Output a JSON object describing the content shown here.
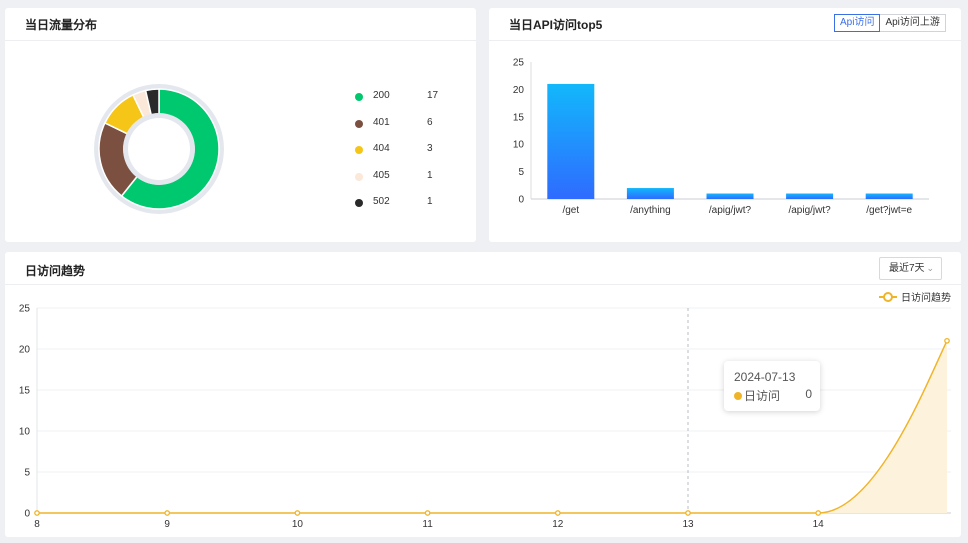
{
  "traffic_card": {
    "title": "当日流量分布",
    "legend": [
      {
        "code": "200",
        "count": 17,
        "color": "#00c86e"
      },
      {
        "code": "401",
        "count": 6,
        "color": "#7b5040"
      },
      {
        "code": "404",
        "count": 3,
        "color": "#f5c518"
      },
      {
        "code": "405",
        "count": 1,
        "color": "#fbe8d8"
      },
      {
        "code": "502",
        "count": 1,
        "color": "#2a2a2a"
      }
    ]
  },
  "api_card": {
    "title": "当日API访问top5",
    "toggle": {
      "active_label": "Api访问",
      "other_label": "Api访问上游"
    }
  },
  "trend_card": {
    "title": "日访问趋势",
    "range_select": "最近7天",
    "legend_label": "日访问趋势",
    "tooltip": {
      "date": "2024-07-13",
      "series": "日访问",
      "value": "0"
    }
  },
  "chart_data": [
    {
      "type": "pie",
      "categories": [
        "200",
        "401",
        "404",
        "405",
        "502"
      ],
      "values": [
        17,
        6,
        3,
        1,
        1
      ],
      "colors": [
        "#00c86e",
        "#7b5040",
        "#f5c518",
        "#fbe8d8",
        "#2a2a2a"
      ],
      "title": "当日流量分布"
    },
    {
      "type": "bar",
      "categories": [
        "/get",
        "/anything",
        "/apig/jwt?",
        "/apig/jwt?",
        "/get?jwt=e"
      ],
      "values": [
        21,
        2,
        1,
        1,
        1
      ],
      "ylim": [
        0,
        25
      ],
      "yticks": [
        0,
        5,
        10,
        15,
        20,
        25
      ],
      "title": "当日API访问top5"
    },
    {
      "type": "area",
      "x": [
        "8",
        "9",
        "10",
        "11",
        "12",
        "13",
        "14",
        "15"
      ],
      "xticks": [
        "8",
        "9",
        "10",
        "11",
        "12",
        "13",
        "14"
      ],
      "series": [
        {
          "name": "日访问趋势",
          "values": [
            0,
            0,
            0,
            0,
            0,
            0,
            0,
            21
          ]
        }
      ],
      "ylim": [
        0,
        25
      ],
      "yticks": [
        0,
        5,
        10,
        15,
        20,
        25
      ],
      "color": "#f0b429",
      "title": "日访问趋势"
    }
  ]
}
